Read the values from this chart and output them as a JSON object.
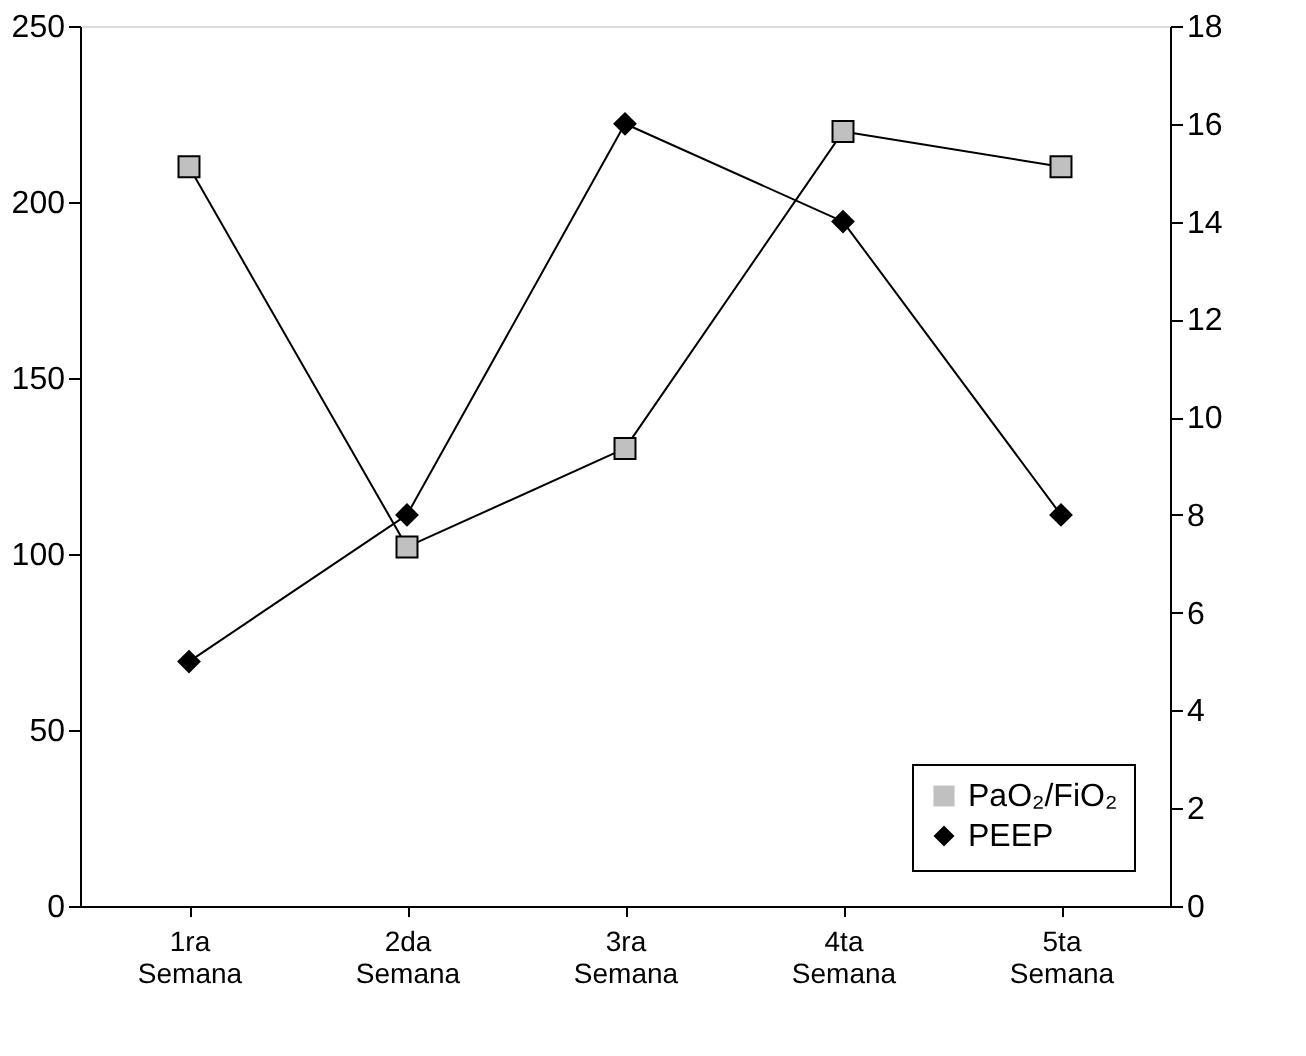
{
  "chart_data": {
    "type": "line",
    "categories": [
      "1ra Semana",
      "2da Semana",
      "3ra Semana",
      "4ta Semana",
      "5ta Semana"
    ],
    "series": [
      {
        "name": "PaO₂/FiO₂",
        "color": "#c0c0c0",
        "marker": "square",
        "values": [
          210,
          102,
          130,
          220,
          210
        ]
      },
      {
        "name": "PEEP",
        "color": "#000000",
        "marker": "diamond",
        "axis": "y2",
        "values": [
          5,
          8,
          16,
          14,
          8
        ]
      }
    ],
    "ylim": [
      0,
      250
    ],
    "yticks": [
      0,
      50,
      100,
      150,
      200,
      250
    ],
    "y2lim": [
      0,
      18
    ],
    "y2ticks": [
      0,
      2,
      4,
      6,
      8,
      10,
      12,
      14,
      16,
      18
    ],
    "grid": false,
    "legend": "bottom right",
    "line_style": "solid"
  }
}
